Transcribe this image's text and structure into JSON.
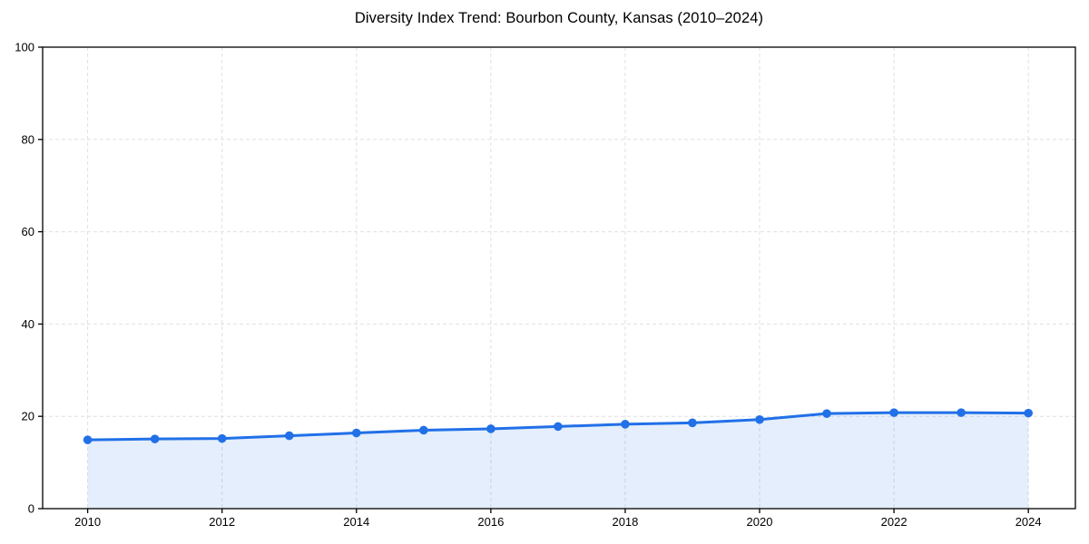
{
  "chart_data": {
    "type": "area",
    "title": "Diversity Index Trend: Bourbon County, Kansas (2010–2024)",
    "xlabel": "",
    "ylabel": "",
    "x": [
      2010,
      2011,
      2012,
      2013,
      2014,
      2015,
      2016,
      2017,
      2018,
      2019,
      2020,
      2021,
      2022,
      2023,
      2024
    ],
    "series": [
      {
        "name": "Diversity Index",
        "values": [
          14.9,
          15.1,
          15.2,
          15.8,
          16.4,
          17.0,
          17.3,
          17.8,
          18.3,
          18.6,
          19.3,
          20.6,
          20.8,
          20.8,
          20.7
        ]
      }
    ],
    "xlim": [
      2009.33,
      2024.7
    ],
    "ylim": [
      0,
      100
    ],
    "xticks": [
      2010,
      2012,
      2014,
      2016,
      2018,
      2020,
      2022,
      2024
    ],
    "yticks": [
      0,
      20,
      40,
      60,
      80,
      100
    ],
    "grid": true,
    "grid_style": "dashed",
    "legend_position": "none",
    "colors": {
      "line": "#2170e8",
      "marker": "#2170e8",
      "fill": "rgba(33,112,232,0.12)",
      "grid": "#e0e0e0",
      "spine": "#000000",
      "tick_text": "#000000",
      "background": "#ffffff"
    }
  }
}
